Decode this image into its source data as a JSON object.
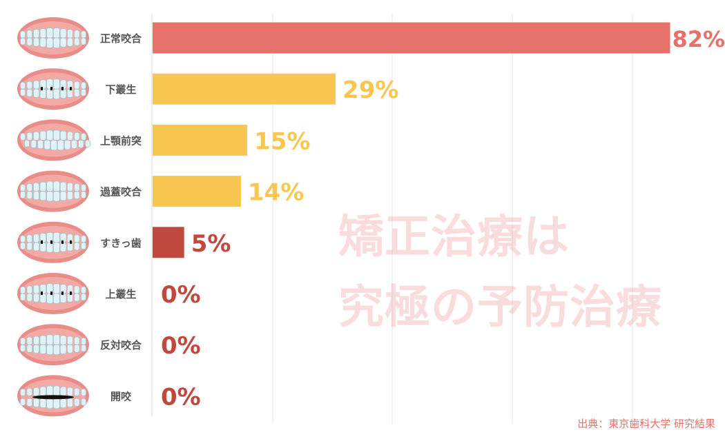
{
  "chart_data": {
    "type": "bar",
    "orientation": "horizontal",
    "categories": [
      "正常咬合",
      "下叢生",
      "上顎前突",
      "過蓋咬合",
      "すきっ歯",
      "上叢生",
      "反対咬合",
      "開咬"
    ],
    "values": [
      82,
      29,
      15,
      14,
      5,
      0,
      0,
      0
    ],
    "value_labels": [
      "82%",
      "29%",
      "15%",
      "14%",
      "5%",
      "0%",
      "0%",
      "0%"
    ],
    "unit": "%",
    "icons": [
      "normal-bite-teeth-icon",
      "lower-crowding-teeth-icon",
      "overjet-teeth-icon",
      "deep-bite-teeth-icon",
      "gap-teeth-icon",
      "upper-crowding-teeth-icon",
      "crossbite-teeth-icon",
      "open-bite-teeth-icon"
    ],
    "bar_colors": [
      "#E5716A",
      "#F9C74F",
      "#F9C74F",
      "#F9C74F",
      "#C0493F",
      "#C0493F",
      "#C0493F",
      "#C0493F"
    ],
    "grid": true,
    "xlim": [
      0,
      100
    ]
  },
  "watermark": {
    "line1": "矯正治療は",
    "line2": "究極の予防治療"
  },
  "source": "出典：東京歯科大学 研究結果"
}
